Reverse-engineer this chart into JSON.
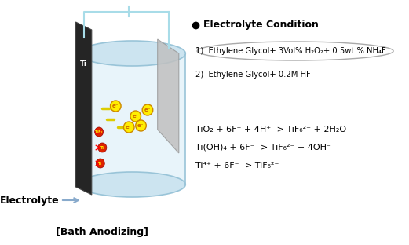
{
  "title": "[Bath Anodizing]",
  "electrolyte_label": "Electrolyte",
  "bullet_title": "Electrolyte Condition",
  "condition1": "1)  Ethylene Glycol+ 3Vol% H₂O₂+ 0.5wt.% NH₄F",
  "condition2": "2)  Ethylene Glycol+ 0.2M HF",
  "reaction1": "TiO₂ + 6F⁻ + 4H⁺ -> TiF₆²⁻ + 2H₂O",
  "reaction2": "Ti(OH)₄ + 6F⁻ -> TiF₆²⁻ + 4OH⁻",
  "reaction3": "Ti⁴⁺ + 6F⁻ -> TiF₆²⁻",
  "bg_color": "#ffffff",
  "cylinder_fill": "#e8f4fa",
  "wire_color": "#a8dce8",
  "plate_dark": "#2a2a2a",
  "plate_light": "#b8b8b8",
  "electron_fill": "#ffee00",
  "electron_edge": "#cc8800",
  "red_dot_fill": "#dd2200",
  "electrolyte_arrow_color": "#88ccdd"
}
